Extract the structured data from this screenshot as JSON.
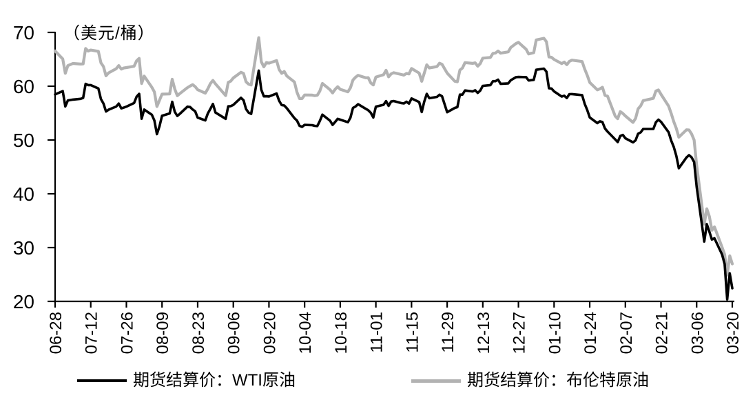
{
  "chart_data": {
    "type": "line",
    "title": "",
    "xlabel": "",
    "ylabel": "（美元/桶）",
    "ylim": [
      20,
      70
    ],
    "grid": false,
    "legend_position": "bottom",
    "y_ticks": [
      20,
      30,
      40,
      50,
      60,
      70
    ],
    "x_ticks": [
      "06-28",
      "07-12",
      "07-26",
      "08-09",
      "08-23",
      "09-06",
      "09-20",
      "10-04",
      "10-18",
      "11-01",
      "11-15",
      "11-29",
      "12-13",
      "12-27",
      "01-10",
      "01-24",
      "02-07",
      "02-21",
      "03-06",
      "03-20"
    ],
    "x": [
      "06-28",
      "07-01",
      "07-02",
      "07-03",
      "07-05",
      "07-08",
      "07-09",
      "07-10",
      "07-11",
      "07-12",
      "07-15",
      "07-16",
      "07-17",
      "07-18",
      "07-19",
      "07-22",
      "07-23",
      "07-24",
      "07-25",
      "07-26",
      "07-29",
      "07-30",
      "07-31",
      "08-01",
      "08-02",
      "08-05",
      "08-06",
      "08-07",
      "08-08",
      "08-09",
      "08-12",
      "08-13",
      "08-14",
      "08-15",
      "08-16",
      "08-19",
      "08-20",
      "08-21",
      "08-22",
      "08-23",
      "08-26",
      "08-27",
      "08-28",
      "08-29",
      "08-30",
      "09-03",
      "09-04",
      "09-05",
      "09-06",
      "09-09",
      "09-10",
      "09-11",
      "09-12",
      "09-13",
      "09-16",
      "09-17",
      "09-18",
      "09-19",
      "09-20",
      "09-23",
      "09-24",
      "09-25",
      "09-26",
      "09-27",
      "09-30",
      "10-01",
      "10-02",
      "10-03",
      "10-04",
      "10-07",
      "10-08",
      "10-09",
      "10-10",
      "10-11",
      "10-14",
      "10-15",
      "10-16",
      "10-17",
      "10-18",
      "10-21",
      "10-22",
      "10-23",
      "10-24",
      "10-25",
      "10-28",
      "10-29",
      "10-30",
      "10-31",
      "11-01",
      "11-04",
      "11-05",
      "11-06",
      "11-07",
      "11-08",
      "11-11",
      "11-12",
      "11-13",
      "11-14",
      "11-15",
      "11-18",
      "11-19",
      "11-20",
      "11-21",
      "11-22",
      "11-25",
      "11-26",
      "11-27",
      "11-29",
      "12-02",
      "12-03",
      "12-04",
      "12-05",
      "12-06",
      "12-09",
      "12-10",
      "12-11",
      "12-12",
      "12-13",
      "12-16",
      "12-17",
      "12-18",
      "12-19",
      "12-20",
      "12-23",
      "12-24",
      "12-26",
      "12-27",
      "12-30",
      "12-31",
      "01-02",
      "01-03",
      "01-06",
      "01-07",
      "01-08",
      "01-09",
      "01-10",
      "01-13",
      "01-14",
      "01-15",
      "01-16",
      "01-17",
      "01-21",
      "01-22",
      "01-23",
      "01-24",
      "01-27",
      "01-28",
      "01-29",
      "01-30",
      "01-31",
      "02-03",
      "02-04",
      "02-05",
      "02-06",
      "02-07",
      "02-10",
      "02-11",
      "02-12",
      "02-13",
      "02-14",
      "02-18",
      "02-19",
      "02-20",
      "02-21",
      "02-24",
      "02-25",
      "02-26",
      "02-27",
      "02-28",
      "03-02",
      "03-03",
      "03-04",
      "03-05",
      "03-06",
      "03-09",
      "03-10",
      "03-11",
      "03-12",
      "03-13",
      "03-16",
      "03-17",
      "03-18",
      "03-19",
      "03-20"
    ],
    "series": [
      {
        "name": "期货结算价：WTI原油",
        "color": "#000000",
        "stroke_width": 3.6,
        "values": [
          58.47,
          59.09,
          56.25,
          57.34,
          57.51,
          57.66,
          57.83,
          60.43,
          60.2,
          60.21,
          59.58,
          57.62,
          56.78,
          55.3,
          55.63,
          56.22,
          56.77,
          55.88,
          56.02,
          56.2,
          56.87,
          58.05,
          58.58,
          53.95,
          55.66,
          54.69,
          53.63,
          51.09,
          52.54,
          54.5,
          54.93,
          57.1,
          55.23,
          54.47,
          54.87,
          56.21,
          56.13,
          55.68,
          55.35,
          54.17,
          53.64,
          54.93,
          55.78,
          56.71,
          55.1,
          53.94,
          56.26,
          56.3,
          56.52,
          57.85,
          57.4,
          55.75,
          55.09,
          54.85,
          62.9,
          59.34,
          58.11,
          58.13,
          58.09,
          58.64,
          57.29,
          56.49,
          56.41,
          55.91,
          54.07,
          53.62,
          52.64,
          52.45,
          52.81,
          52.75,
          52.63,
          52.59,
          53.55,
          54.7,
          53.59,
          52.81,
          53.36,
          53.93,
          53.78,
          53.31,
          54.16,
          55.97,
          56.23,
          56.66,
          55.81,
          55.54,
          55.06,
          54.18,
          56.2,
          56.54,
          57.23,
          56.35,
          57.15,
          57.24,
          56.86,
          56.8,
          57.12,
          56.77,
          57.72,
          57.05,
          55.21,
          57.11,
          58.58,
          57.77,
          58.01,
          58.41,
          58.11,
          55.17,
          55.96,
          56.1,
          58.43,
          58.43,
          59.2,
          59.02,
          59.24,
          58.76,
          59.18,
          60.07,
          60.21,
          60.94,
          60.93,
          61.22,
          60.44,
          60.52,
          61.11,
          61.68,
          61.72,
          61.68,
          61.06,
          61.18,
          63.05,
          63.27,
          62.7,
          59.61,
          59.56,
          59.04,
          58.08,
          58.23,
          57.81,
          58.52,
          58.54,
          58.34,
          56.74,
          55.59,
          54.19,
          53.14,
          53.48,
          53.33,
          52.14,
          51.56,
          50.11,
          49.61,
          50.75,
          50.95,
          50.32,
          49.57,
          49.94,
          51.17,
          51.42,
          52.05,
          52.05,
          53.29,
          53.78,
          53.38,
          51.43,
          49.9,
          48.73,
          47.09,
          44.76,
          46.75,
          47.18,
          46.78,
          45.9,
          41.28,
          31.13,
          34.36,
          32.98,
          31.5,
          31.73,
          28.7,
          26.95,
          20.37,
          25.22,
          22.43
        ]
      },
      {
        "name": "期货结算价：布伦特原油",
        "color": "#b2b2b2",
        "stroke_width": 4.2,
        "values": [
          66.55,
          65.06,
          62.4,
          63.82,
          64.23,
          64.11,
          64.16,
          67.01,
          66.52,
          66.72,
          66.48,
          64.35,
          63.66,
          61.93,
          62.47,
          63.26,
          63.83,
          63.18,
          63.39,
          63.46,
          63.71,
          64.72,
          65.17,
          60.5,
          61.89,
          59.81,
          58.94,
          56.23,
          57.38,
          58.53,
          58.57,
          61.3,
          59.48,
          58.23,
          58.64,
          59.74,
          60.03,
          60.3,
          59.92,
          59.34,
          58.7,
          59.51,
          60.49,
          61.08,
          60.43,
          58.26,
          60.7,
          60.95,
          61.54,
          62.59,
          62.38,
          60.81,
          60.38,
          60.22,
          69.02,
          64.55,
          63.6,
          64.4,
          64.28,
          64.77,
          63.1,
          62.39,
          62.74,
          61.91,
          60.78,
          58.89,
          57.69,
          57.71,
          58.37,
          58.35,
          58.24,
          58.32,
          59.1,
          60.51,
          59.35,
          58.74,
          59.42,
          59.91,
          59.42,
          58.96,
          59.7,
          61.17,
          61.67,
          62.02,
          61.57,
          61.59,
          60.61,
          60.23,
          61.69,
          62.13,
          62.96,
          61.74,
          62.29,
          62.51,
          62.18,
          62.06,
          62.37,
          62.28,
          63.3,
          62.44,
          60.91,
          62.4,
          63.97,
          63.39,
          63.65,
          64.27,
          64.06,
          62.43,
          60.92,
          60.82,
          63.0,
          63.39,
          64.39,
          64.25,
          64.34,
          63.72,
          64.2,
          65.22,
          65.34,
          66.1,
          66.17,
          66.54,
          66.14,
          66.39,
          67.2,
          67.92,
          68.16,
          66.87,
          66.0,
          66.25,
          68.6,
          68.91,
          68.27,
          65.44,
          65.37,
          64.98,
          64.2,
          64.49,
          64.0,
          64.62,
          64.85,
          64.59,
          63.21,
          62.04,
          60.69,
          59.32,
          59.51,
          59.81,
          58.29,
          58.16,
          54.45,
          53.96,
          55.28,
          54.93,
          54.47,
          53.27,
          54.01,
          55.79,
          56.34,
          57.32,
          57.75,
          59.12,
          59.31,
          58.5,
          56.3,
          54.95,
          53.43,
          52.18,
          50.52,
          51.9,
          51.86,
          51.13,
          49.99,
          45.27,
          34.36,
          37.22,
          35.79,
          33.22,
          33.85,
          30.05,
          28.73,
          24.88,
          28.47,
          26.98
        ]
      }
    ]
  }
}
